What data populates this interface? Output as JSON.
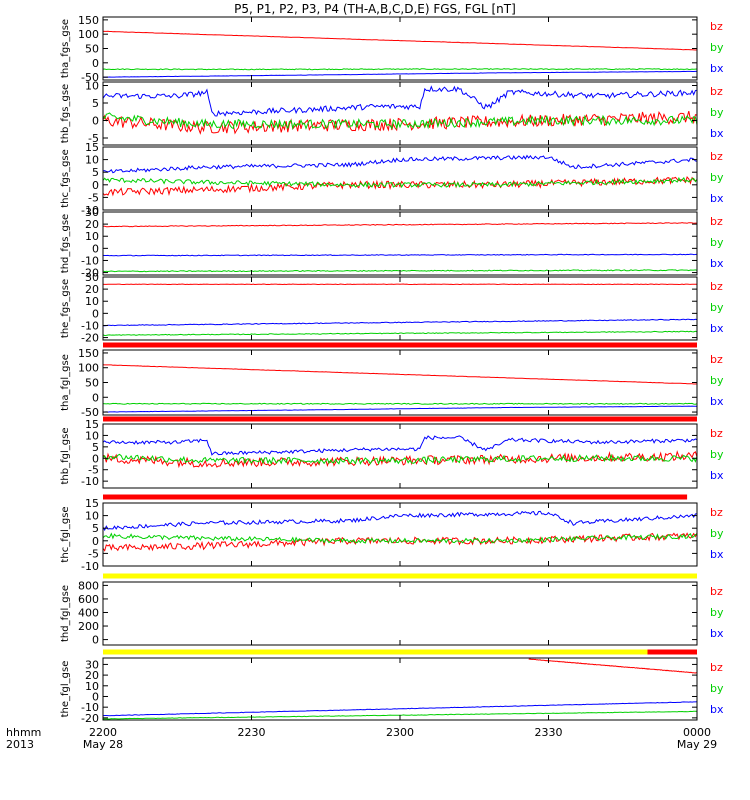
{
  "title": "P5, P1, P2, P3, P4 (TH-A,B,C,D,E) FGS, FGL [nT]",
  "x_axis": {
    "row_label_1": "hhmm",
    "row_label_2": "2013",
    "ticks": [
      {
        "t": 0,
        "label": "2200",
        "date": "May 28"
      },
      {
        "t": 30,
        "label": "2230",
        "date": ""
      },
      {
        "t": 60,
        "label": "2300",
        "date": ""
      },
      {
        "t": 90,
        "label": "2330",
        "date": ""
      },
      {
        "t": 120,
        "label": "0000",
        "date": "May 29"
      }
    ],
    "range": [
      0,
      120
    ]
  },
  "colors": {
    "bx": "#0000ff",
    "by": "#00d000",
    "bz": "#ff0000",
    "bar_red": "#ff0000",
    "bar_yellow": "#ffff00"
  },
  "chart_data": [
    {
      "type": "line",
      "ylabel": "tha_fgs_gse",
      "yticks": [
        150,
        100,
        50,
        0,
        -50
      ],
      "ylim": [
        -60,
        160
      ],
      "legend": [
        "bz",
        "by",
        "bx"
      ],
      "series": [
        {
          "name": "bz",
          "x": [
            0,
            120
          ],
          "values": [
            110,
            45
          ],
          "noise": 0.5
        },
        {
          "name": "by",
          "x": [
            0,
            25,
            60,
            80,
            120
          ],
          "values": [
            -22,
            -23,
            -22,
            -22,
            -22
          ],
          "noise": 1.5
        },
        {
          "name": "bx",
          "x": [
            0,
            40,
            80,
            120
          ],
          "values": [
            -50,
            -43,
            -35,
            -30
          ],
          "noise": 0.4
        }
      ],
      "bar": null
    },
    {
      "type": "line",
      "ylabel": "thb_fgs_gse",
      "yticks": [
        10,
        5,
        0,
        -5
      ],
      "ylim": [
        -7,
        11
      ],
      "legend": [
        "bz",
        "by",
        "bx"
      ],
      "series": [
        {
          "name": "bz",
          "x": [
            0,
            20,
            60,
            90,
            120
          ],
          "values": [
            0,
            -2,
            -1,
            0,
            1
          ],
          "noise": 1.8
        },
        {
          "name": "by",
          "x": [
            0,
            20,
            60,
            90,
            120
          ],
          "values": [
            1,
            -1,
            -1,
            0,
            0
          ],
          "noise": 1.3
        },
        {
          "name": "bx",
          "x": [
            0,
            15,
            21,
            22,
            40,
            55,
            64,
            65,
            72,
            77,
            78,
            82,
            84,
            100,
            120
          ],
          "values": [
            7,
            7,
            8,
            2,
            3,
            4,
            4,
            9,
            9,
            4,
            4,
            8,
            8,
            7,
            8
          ],
          "noise": 0.8
        }
      ],
      "bar": null
    },
    {
      "type": "line",
      "ylabel": "thc_fgs_gse",
      "yticks": [
        15,
        10,
        5,
        0,
        -5,
        -10
      ],
      "ylim": [
        -10,
        15
      ],
      "legend": [
        "bz",
        "by",
        "bx"
      ],
      "series": [
        {
          "name": "bz",
          "x": [
            0,
            20,
            50,
            80,
            120
          ],
          "values": [
            -3,
            -2,
            0,
            0,
            2
          ],
          "noise": 1.4
        },
        {
          "name": "by",
          "x": [
            0,
            20,
            50,
            80,
            120
          ],
          "values": [
            2,
            1,
            0,
            0,
            2
          ],
          "noise": 0.9
        },
        {
          "name": "bx",
          "x": [
            0,
            20,
            50,
            60,
            90,
            95,
            120
          ],
          "values": [
            5,
            7,
            8,
            10,
            11,
            7,
            10
          ],
          "noise": 0.8
        }
      ],
      "bar": null
    },
    {
      "type": "line",
      "ylabel": "thd_fgs_gse",
      "yticks": [
        30,
        20,
        10,
        0,
        -10,
        -20
      ],
      "ylim": [
        -22,
        30
      ],
      "legend": [
        "bz",
        "by",
        "bx"
      ],
      "series": [
        {
          "name": "bz",
          "x": [
            0,
            120
          ],
          "values": [
            18,
            21
          ],
          "noise": 0.3
        },
        {
          "name": "by",
          "x": [
            0,
            120
          ],
          "values": [
            -19,
            -18
          ],
          "noise": 0.4
        },
        {
          "name": "bx",
          "x": [
            0,
            120
          ],
          "values": [
            -6,
            -5
          ],
          "noise": 0.3
        }
      ],
      "bar": null
    },
    {
      "type": "line",
      "ylabel": "the_fgs_gse",
      "yticks": [
        30,
        20,
        10,
        0,
        -10,
        -20
      ],
      "ylim": [
        -22,
        30
      ],
      "legend": [
        "bz",
        "by",
        "bx"
      ],
      "series": [
        {
          "name": "bz",
          "x": [
            0,
            120
          ],
          "values": [
            24,
            24
          ],
          "noise": 0.2
        },
        {
          "name": "by",
          "x": [
            0,
            120
          ],
          "values": [
            -18,
            -15
          ],
          "noise": 0.3
        },
        {
          "name": "bx",
          "x": [
            0,
            120
          ],
          "values": [
            -10,
            -5
          ],
          "noise": 0.3
        }
      ],
      "bar": {
        "segments": [
          {
            "from": 0,
            "to": 120,
            "color": "red"
          }
        ]
      }
    },
    {
      "type": "line",
      "ylabel": "tha_fgl_gse",
      "yticks": [
        150,
        100,
        50,
        0,
        -50
      ],
      "ylim": [
        -60,
        160
      ],
      "legend": [
        "bz",
        "by",
        "bx"
      ],
      "series": [
        {
          "name": "bz",
          "x": [
            0,
            120
          ],
          "values": [
            110,
            45
          ],
          "noise": 0.5
        },
        {
          "name": "by",
          "x": [
            0,
            60,
            120
          ],
          "values": [
            -22,
            -22,
            -22
          ],
          "noise": 1.5
        },
        {
          "name": "bx",
          "x": [
            0,
            40,
            80,
            120
          ],
          "values": [
            -50,
            -43,
            -35,
            -30
          ],
          "noise": 0.4
        }
      ],
      "bar": {
        "segments": [
          {
            "from": 0,
            "to": 120,
            "color": "red"
          }
        ]
      }
    },
    {
      "type": "line",
      "ylabel": "thb_fgl_gse",
      "yticks": [
        15,
        10,
        5,
        0,
        -5,
        -10
      ],
      "ylim": [
        -13,
        15
      ],
      "legend": [
        "bz",
        "by",
        "bx"
      ],
      "series": [
        {
          "name": "bz",
          "x": [
            0,
            20,
            60,
            90,
            120
          ],
          "values": [
            0,
            -2,
            -1,
            0,
            1
          ],
          "noise": 2.0
        },
        {
          "name": "by",
          "x": [
            0,
            20,
            60,
            90,
            120
          ],
          "values": [
            1,
            -1,
            -1,
            0,
            0
          ],
          "noise": 1.4
        },
        {
          "name": "bx",
          "x": [
            0,
            15,
            21,
            22,
            40,
            55,
            64,
            65,
            72,
            77,
            78,
            82,
            84,
            100,
            120
          ],
          "values": [
            7,
            7,
            8,
            2,
            3,
            4,
            4,
            9,
            9,
            4,
            4,
            8,
            8,
            7,
            8
          ],
          "noise": 0.8
        }
      ],
      "bar": {
        "segments": [
          {
            "from": 0,
            "to": 118,
            "color": "red"
          }
        ]
      }
    },
    {
      "type": "line",
      "ylabel": "thc_fgl_gse",
      "yticks": [
        15,
        10,
        5,
        0,
        -5,
        -10
      ],
      "ylim": [
        -10,
        15
      ],
      "legend": [
        "bz",
        "by",
        "bx"
      ],
      "series": [
        {
          "name": "bz",
          "x": [
            0,
            20,
            50,
            80,
            120
          ],
          "values": [
            -3,
            -2,
            0,
            0,
            2
          ],
          "noise": 1.4
        },
        {
          "name": "by",
          "x": [
            0,
            20,
            50,
            80,
            120
          ],
          "values": [
            2,
            1,
            0,
            0,
            2
          ],
          "noise": 0.9
        },
        {
          "name": "bx",
          "x": [
            0,
            20,
            50,
            60,
            90,
            95,
            120
          ],
          "values": [
            5,
            7,
            8,
            10,
            11,
            7,
            10
          ],
          "noise": 0.8
        }
      ],
      "bar": {
        "segments": [
          {
            "from": 0,
            "to": 120,
            "color": "yellow"
          }
        ]
      }
    },
    {
      "type": "line",
      "ylabel": "thd_fgl_gse",
      "yticks": [
        800,
        600,
        400,
        200,
        0
      ],
      "ylim": [
        -80,
        850
      ],
      "legend": [
        "bz",
        "by",
        "bx"
      ],
      "series": [],
      "bar": {
        "segments": [
          {
            "from": 0,
            "to": 110,
            "color": "yellow"
          },
          {
            "from": 110,
            "to": 120,
            "color": "red"
          }
        ]
      }
    },
    {
      "type": "line",
      "ylabel": "the_fgl_gse",
      "yticks": [
        30,
        20,
        10,
        0,
        -10,
        -20
      ],
      "ylim": [
        -22,
        36
      ],
      "legend": [
        "bz",
        "by",
        "bx"
      ],
      "series": [
        {
          "name": "bz",
          "x": [
            86,
            120
          ],
          "values": [
            35,
            22
          ],
          "noise": 0.2
        },
        {
          "name": "by",
          "x": [
            0,
            120
          ],
          "values": [
            -21,
            -14
          ],
          "noise": 0.2
        },
        {
          "name": "bx",
          "x": [
            0,
            120
          ],
          "values": [
            -18,
            -5
          ],
          "noise": 0.2
        }
      ],
      "bar": null
    }
  ]
}
